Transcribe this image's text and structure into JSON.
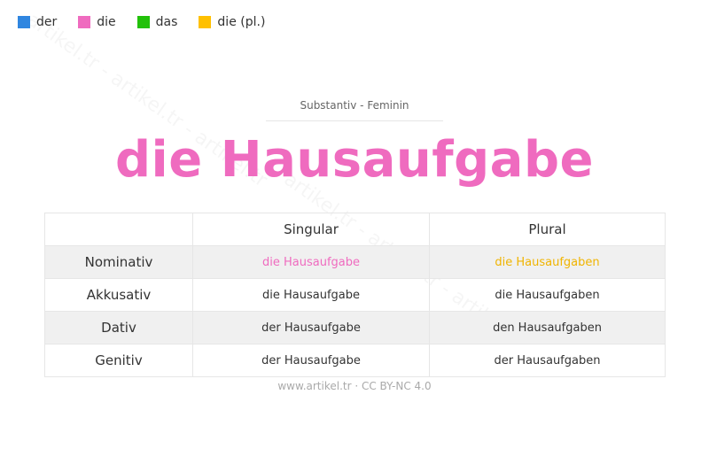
{
  "legend": [
    {
      "label": "der",
      "color": "#2f86e0"
    },
    {
      "label": "die",
      "color": "#ef6bbf"
    },
    {
      "label": "das",
      "color": "#22c10a"
    },
    {
      "label": "die (pl.)",
      "color": "#ffc000"
    }
  ],
  "watermark": "artikel.tr - artikel.tr - artikel.tr",
  "subtitle": "Substantiv  -  Feminin",
  "title": "die Hausaufgabe",
  "table": {
    "headers": [
      "",
      "Singular",
      "Plural"
    ],
    "rows": [
      {
        "case": "Nominativ",
        "singular": "die Hausaufgabe",
        "plural": "die Hausaufgaben"
      },
      {
        "case": "Akkusativ",
        "singular": "die Hausaufgabe",
        "plural": "die Hausaufgaben"
      },
      {
        "case": "Dativ",
        "singular": "der Hausaufgabe",
        "plural": "den Hausaufgaben"
      },
      {
        "case": "Genitiv",
        "singular": "der Hausaufgabe",
        "plural": "der Hausaufgaben"
      }
    ]
  },
  "footer": "www.artikel.tr · CC BY-NC 4.0"
}
